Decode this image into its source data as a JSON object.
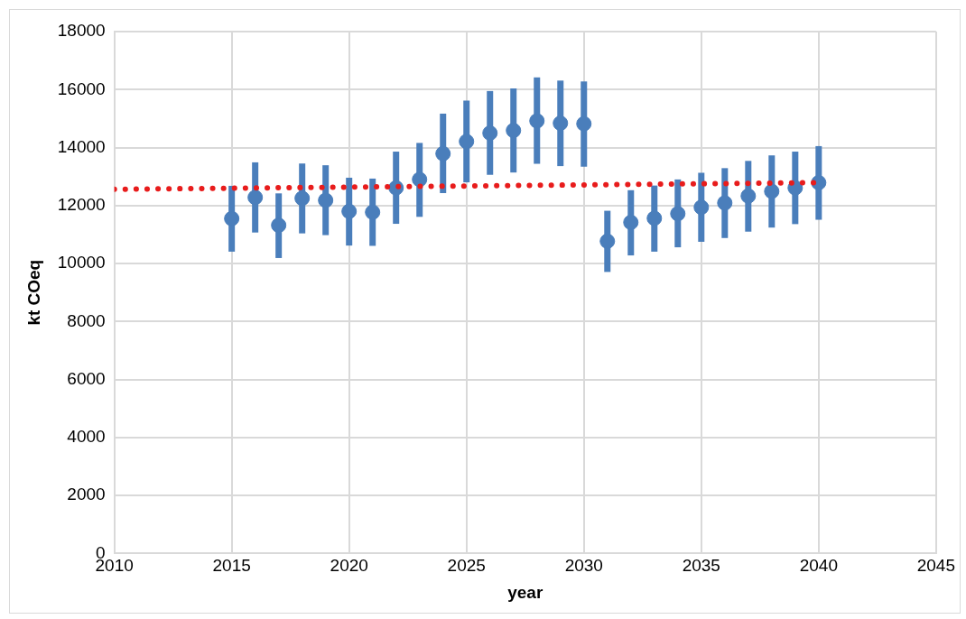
{
  "chart_data": {
    "type": "scatter",
    "xlabel": "year",
    "ylabel": "kt COeq",
    "xlim": [
      2010,
      2045
    ],
    "xticks": [
      2010,
      2015,
      2020,
      2025,
      2030,
      2035,
      2040,
      2045
    ],
    "ylim": [
      0,
      18000
    ],
    "yticks": [
      0,
      2000,
      4000,
      6000,
      8000,
      10000,
      12000,
      14000,
      16000,
      18000
    ],
    "grid": true,
    "legend": false,
    "series": [
      {
        "color": "#4a7ebb",
        "marker": "circle",
        "x": [
          2015,
          2016,
          2017,
          2018,
          2019,
          2020,
          2021,
          2022,
          2023,
          2024,
          2025,
          2026,
          2027,
          2028,
          2029,
          2030,
          2031,
          2032,
          2033,
          2034,
          2035,
          2036,
          2037,
          2038,
          2039,
          2040
        ],
        "values": [
          11550,
          12280,
          11320,
          12250,
          12180,
          11800,
          11770,
          12610,
          12900,
          13790,
          14210,
          14500,
          14590,
          14920,
          14840,
          14820,
          10770,
          11420,
          11560,
          11720,
          11940,
          12090,
          12330,
          12490,
          12610,
          12790
        ],
        "errors": [
          [
            10410,
            12680
          ],
          [
            11070,
            13490
          ],
          [
            10190,
            12420
          ],
          [
            11040,
            13450
          ],
          [
            10980,
            13390
          ],
          [
            10620,
            12960
          ],
          [
            10610,
            12930
          ],
          [
            11370,
            13860
          ],
          [
            11610,
            14160
          ],
          [
            12430,
            15170
          ],
          [
            12800,
            15620
          ],
          [
            13060,
            15950
          ],
          [
            13140,
            16040
          ],
          [
            13440,
            16420
          ],
          [
            13360,
            16310
          ],
          [
            13340,
            16280
          ],
          [
            9710,
            11820
          ],
          [
            10280,
            12530
          ],
          [
            10410,
            12690
          ],
          [
            10560,
            12900
          ],
          [
            10750,
            13130
          ],
          [
            10880,
            13290
          ],
          [
            11100,
            13540
          ],
          [
            11240,
            13730
          ],
          [
            11360,
            13860
          ],
          [
            11510,
            14050
          ]
        ]
      },
      {
        "type": "line",
        "color": "#e81c1c",
        "marker": "none",
        "line_style": "dotted",
        "x": [
          2010,
          2040
        ],
        "values": [
          12560,
          12790
        ]
      }
    ]
  }
}
